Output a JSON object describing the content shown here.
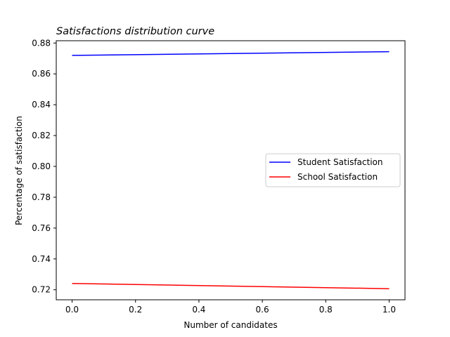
{
  "chart_data": {
    "type": "line",
    "title": "Satisfactions distribution curve",
    "xlabel": "Number of candidates",
    "ylabel": "Percentage of satisfaction",
    "xlim": [
      -0.05,
      1.05
    ],
    "ylim": [
      0.7135,
      0.8815
    ],
    "xticks": [
      0.0,
      0.2,
      0.4,
      0.6,
      0.8,
      1.0
    ],
    "xtick_labels": [
      "0.0",
      "0.2",
      "0.4",
      "0.6",
      "0.8",
      "1.0"
    ],
    "yticks": [
      0.72,
      0.74,
      0.76,
      0.78,
      0.8,
      0.82,
      0.84,
      0.86,
      0.88
    ],
    "ytick_labels": [
      "0.72",
      "0.74",
      "0.76",
      "0.78",
      "0.80",
      "0.82",
      "0.84",
      "0.86",
      "0.88"
    ],
    "grid": false,
    "legend_position": "center-right",
    "series": [
      {
        "name": "Student Satisfaction",
        "color": "#0000ff",
        "x": [
          0.0,
          1.0
        ],
        "y": [
          0.872,
          0.8744
        ]
      },
      {
        "name": "School Satisfaction",
        "color": "#ff0000",
        "x": [
          0.0,
          1.0
        ],
        "y": [
          0.7241,
          0.7207
        ]
      }
    ]
  }
}
